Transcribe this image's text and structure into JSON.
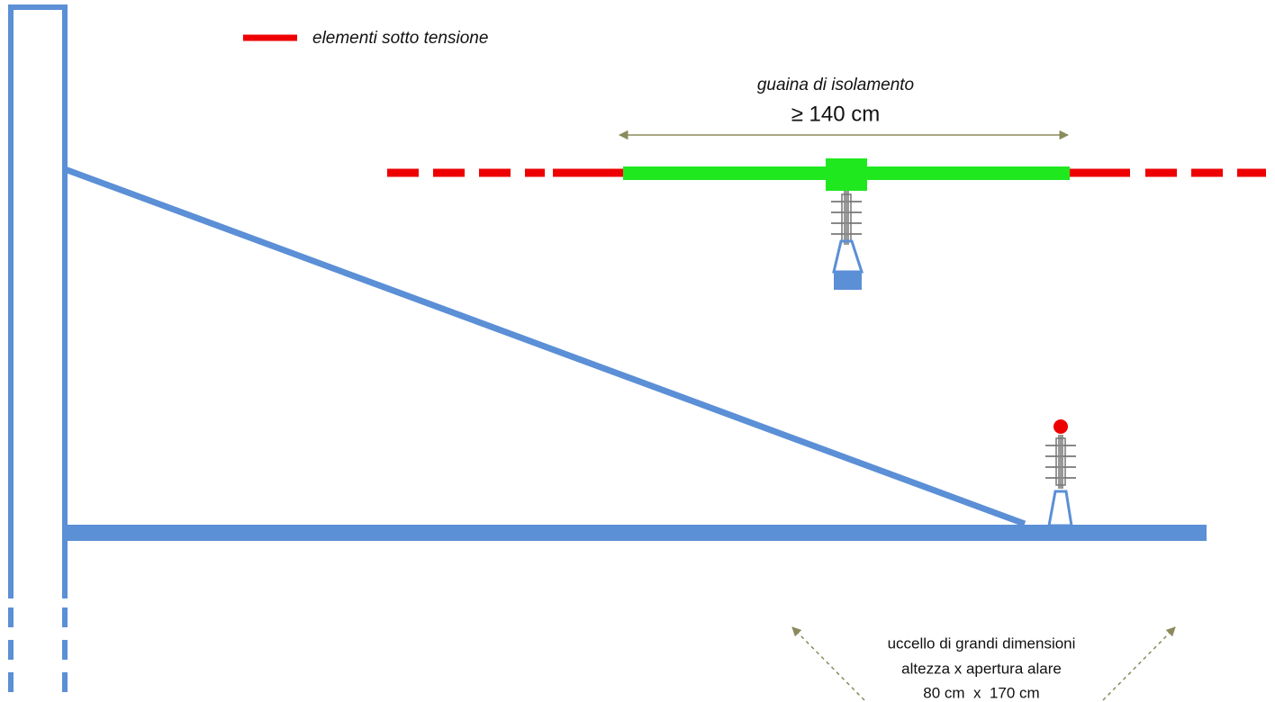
{
  "legend": {
    "label": "elementi sotto tensione"
  },
  "insulation": {
    "title": "guaina di isolamento",
    "length": "≥ 140 cm"
  },
  "bird": {
    "lines": [
      "uccello di grandi dimensioni",
      "altezza x apertura alare",
      "80 cm  x  170 cm"
    ]
  }
}
